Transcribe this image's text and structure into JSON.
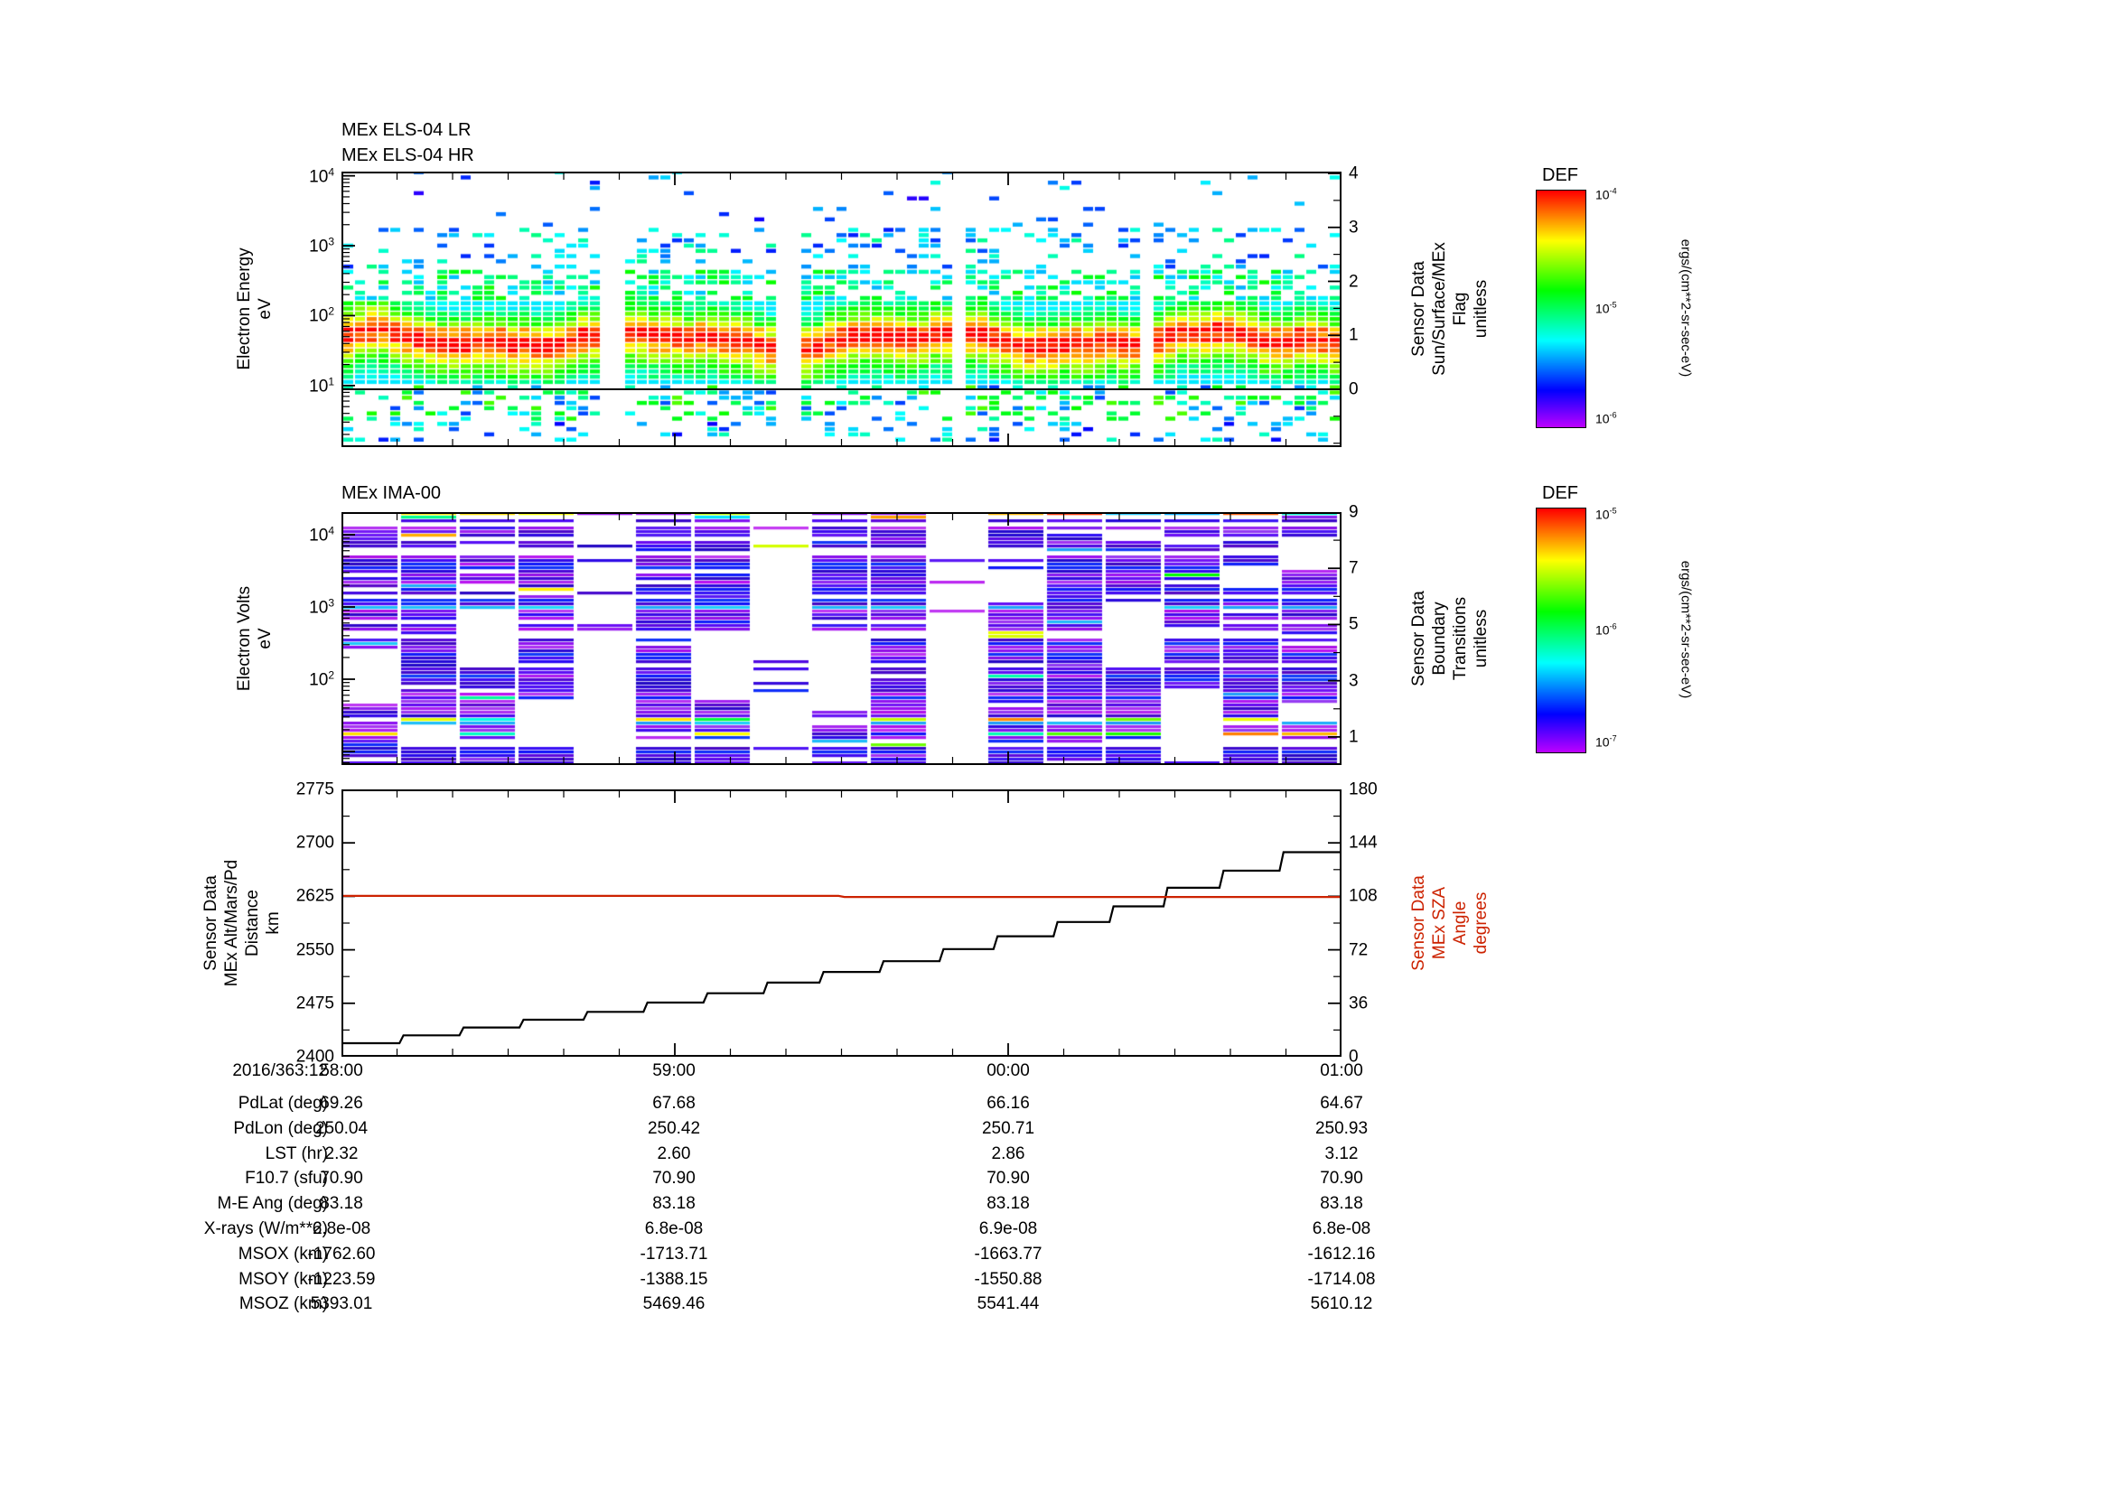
{
  "colors": {
    "background": "#ffffff",
    "axis": "#000000",
    "altitude_line": "#000000",
    "sza_line": "#cc2200"
  },
  "xaxis": {
    "date_label": "2016/363:12",
    "tick_labels": [
      "58:00",
      "59:00",
      "00:00",
      "01:00"
    ]
  },
  "chart_data": [
    {
      "id": "els_spectrogram",
      "type": "heatmap",
      "titles": [
        "MEx ELS-04 LR",
        "MEx ELS-04 HR"
      ],
      "ylabel_lines": [
        "Electron Energy",
        "eV"
      ],
      "yscale": "log",
      "ytick_exponents": [
        4,
        3,
        2,
        1
      ],
      "yrange_log": [
        0.12,
        4.06
      ],
      "right_axis": {
        "label_lines": [
          "Sensor Data",
          "Sun/Surface/MEx",
          "Flag",
          "unitless"
        ],
        "ticks": [
          4,
          3,
          2,
          1,
          0
        ],
        "flag_value": 0
      },
      "colorbar": {
        "title": "DEF",
        "tick_exponents": [
          -4,
          -5,
          -6
        ],
        "units": "ergs/(cm**2-sr-sec-eV)"
      },
      "spectrogram": {
        "seed": 7,
        "gaps": [
          [
            0.252,
            0.272
          ],
          [
            0.432,
            0.452
          ],
          [
            0.602,
            0.62
          ],
          [
            0.792,
            0.812
          ]
        ],
        "band_range_log": [
          1.0,
          2.15
        ],
        "band_center_log": 1.62
      }
    },
    {
      "id": "ima_spectrogram",
      "type": "heatmap",
      "titles": [
        "MEx IMA-00"
      ],
      "ylabel_lines": [
        "Electron Volts",
        "eV"
      ],
      "yscale": "log",
      "ytick_exponents": [
        4,
        3,
        2
      ],
      "yrange_log": [
        0.8125,
        4.3125
      ],
      "right_axis": {
        "label_lines": [
          "Sensor Data",
          "Boundary",
          "Transitions",
          "unitless"
        ],
        "ticks": [
          9,
          7,
          5,
          3,
          1
        ],
        "range": [
          0,
          9
        ]
      },
      "colorbar": {
        "title": "DEF",
        "tick_exponents": [
          -5,
          -6,
          -7
        ],
        "units": "ergs/(cm**2-sr-sec-eV)"
      },
      "spectrogram": {
        "seed": 3,
        "gaps": [
          [
            0.252,
            0.272
          ],
          [
            0.432,
            0.452
          ],
          [
            0.602,
            0.62
          ],
          [
            0.792,
            0.812
          ]
        ]
      }
    },
    {
      "id": "alt_sza_line",
      "type": "line",
      "left_axis": {
        "label_lines": [
          "Sensor Data",
          "MEx Alt/Mars/Pd",
          "Distance",
          "km"
        ],
        "ticks": [
          2775,
          2700,
          2625,
          2550,
          2475,
          2400
        ],
        "range": [
          2400,
          2775
        ]
      },
      "right_axis": {
        "label_lines": [
          "Sensor Data",
          "MEx SZA",
          "Angle",
          "degrees"
        ],
        "ticks": [
          180,
          144,
          108,
          72,
          36,
          0
        ],
        "range": [
          0,
          180
        ],
        "color": "#cc2200"
      },
      "series": [
        {
          "name": "MEx altitude",
          "axis": "left",
          "color": "#000000",
          "points": [
            [
              0.0,
              2419
            ],
            [
              0.058,
              2419
            ],
            [
              0.062,
              2430
            ],
            [
              0.118,
              2430
            ],
            [
              0.122,
              2441
            ],
            [
              0.178,
              2441
            ],
            [
              0.182,
              2452
            ],
            [
              0.242,
              2452
            ],
            [
              0.246,
              2463
            ],
            [
              0.302,
              2463
            ],
            [
              0.306,
              2476
            ],
            [
              0.362,
              2476
            ],
            [
              0.366,
              2489
            ],
            [
              0.422,
              2489
            ],
            [
              0.426,
              2504
            ],
            [
              0.478,
              2504
            ],
            [
              0.482,
              2519
            ],
            [
              0.538,
              2519
            ],
            [
              0.542,
              2534
            ],
            [
              0.598,
              2534
            ],
            [
              0.602,
              2551
            ],
            [
              0.652,
              2551
            ],
            [
              0.656,
              2569
            ],
            [
              0.712,
              2569
            ],
            [
              0.716,
              2589
            ],
            [
              0.768,
              2589
            ],
            [
              0.772,
              2611
            ],
            [
              0.822,
              2611
            ],
            [
              0.826,
              2637
            ],
            [
              0.878,
              2637
            ],
            [
              0.882,
              2661
            ],
            [
              0.938,
              2661
            ],
            [
              0.942,
              2687
            ],
            [
              1.0,
              2687
            ]
          ]
        },
        {
          "name": "MEx SZA",
          "axis": "right",
          "color": "#cc2200",
          "points": [
            [
              0.0,
              108.3
            ],
            [
              0.497,
              108.3
            ],
            [
              0.503,
              107.6
            ],
            [
              1.0,
              107.6
            ]
          ]
        }
      ]
    }
  ],
  "table": {
    "rows": [
      {
        "label": "PdLat (deg)",
        "values": [
          "69.26",
          "67.68",
          "66.16",
          "64.67"
        ]
      },
      {
        "label": "PdLon (deg)",
        "values": [
          "250.04",
          "250.42",
          "250.71",
          "250.93"
        ]
      },
      {
        "label": "LST (hr)",
        "values": [
          "2.32",
          "2.60",
          "2.86",
          "3.12"
        ]
      },
      {
        "label": "F10.7 (sfu)",
        "values": [
          "70.90",
          "70.90",
          "70.90",
          "70.90"
        ]
      },
      {
        "label": "M-E Ang (deg)",
        "values": [
          "83.18",
          "83.18",
          "83.18",
          "83.18"
        ]
      },
      {
        "label": "X-rays (W/m**2)",
        "values": [
          "6.8e-08",
          "6.8e-08",
          "6.9e-08",
          "6.8e-08"
        ]
      },
      {
        "label": "MSOX (km)",
        "values": [
          "-1762.60",
          "-1713.71",
          "-1663.77",
          "-1612.16"
        ]
      },
      {
        "label": "MSOY (km)",
        "values": [
          "-1223.59",
          "-1388.15",
          "-1550.88",
          "-1714.08"
        ]
      },
      {
        "label": "MSOZ (km)",
        "values": [
          "5393.01",
          "5469.46",
          "5541.44",
          "5610.12"
        ]
      }
    ]
  }
}
